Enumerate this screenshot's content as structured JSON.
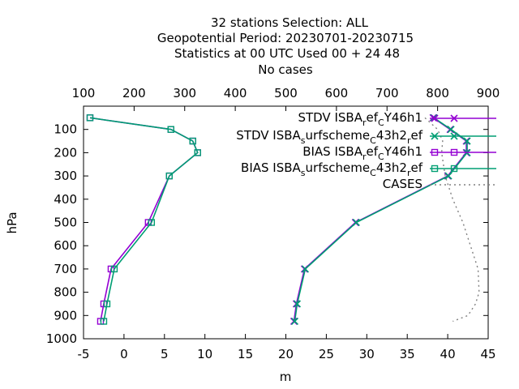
{
  "chart_data": {
    "type": "line",
    "title_lines": [
      "32 stations Selection: ALL",
      "Geopotential  Period: 20230701-20230715",
      "Statistics at 00 UTC  Used  00 + 24 48",
      "No cases"
    ],
    "xlabel": "m",
    "ylabel": "hPa",
    "xlim": [
      -5,
      45
    ],
    "x2lim": [
      100,
      900
    ],
    "ylim": [
      1000,
      0
    ],
    "x_ticks": [
      "-5",
      "0",
      "5",
      "10",
      "15",
      "20",
      "25",
      "30",
      "35",
      "40",
      "45"
    ],
    "x2_ticks": [
      "100",
      "200",
      "300",
      "400",
      "500",
      "600",
      "700",
      "800",
      "900"
    ],
    "y_ticks": [
      "100",
      "200",
      "300",
      "400",
      "500",
      "600",
      "700",
      "800",
      "900",
      "1000"
    ],
    "legend_position": "top-right",
    "series": [
      {
        "name": "STDV ISBA_ref_CY46h1",
        "color": "#9400d3",
        "marker": "x",
        "x": [
          38.2,
          40.3,
          42.3,
          42.3,
          40.0,
          28.6,
          22.3,
          21.3,
          21.0
        ],
        "y": [
          50,
          100,
          150,
          200,
          300,
          500,
          700,
          850,
          925
        ]
      },
      {
        "name": "STDV ISBA_surfscheme_C43h2_ref",
        "color": "#009e73",
        "marker": "x",
        "x": [
          38.3,
          40.4,
          42.4,
          42.4,
          40.1,
          28.7,
          22.4,
          21.4,
          21.1
        ],
        "y": [
          50,
          100,
          150,
          200,
          300,
          500,
          700,
          850,
          925
        ]
      },
      {
        "name": "BIAS ISBA_ref_CY46h1",
        "color": "#9400d3",
        "marker": "square",
        "x": [
          -4.2,
          5.8,
          8.5,
          9.1,
          5.6,
          3.0,
          -1.6,
          -2.5,
          -2.9
        ],
        "y": [
          50,
          100,
          150,
          200,
          300,
          500,
          700,
          850,
          925
        ]
      },
      {
        "name": "BIAS ISBA_surfscheme_C43h2_ref",
        "color": "#009e73",
        "marker": "square",
        "x": [
          -4.2,
          5.8,
          8.5,
          9.1,
          5.6,
          3.4,
          -1.2,
          -2.1,
          -2.5
        ],
        "y": [
          50,
          100,
          150,
          200,
          300,
          500,
          700,
          850,
          925
        ]
      },
      {
        "name": "CASES",
        "color": "#808080",
        "axis": "x2",
        "dashed": true,
        "x": [
          775,
          800,
          810,
          808,
          815,
          830,
          850,
          865,
          880,
          882,
          875,
          860,
          830
        ],
        "y": [
          50,
          100,
          150,
          200,
          300,
          400,
          500,
          600,
          700,
          800,
          850,
          900,
          925
        ]
      }
    ]
  },
  "legend_labels": [
    {
      "main": "STDV ISBA",
      "sub1": "r",
      "mid1": "ef",
      "sub2": "C",
      "tail": "Y46h1"
    },
    {
      "main": "STDV ISBA",
      "sub1": "s",
      "mid1": "urfscheme",
      "sub2": "C",
      "tail": "43h2",
      "sub3": "r",
      "tail2": "ef"
    },
    {
      "main": "BIAS ISBA",
      "sub1": "r",
      "mid1": "ef",
      "sub2": "C",
      "tail": "Y46h1"
    },
    {
      "main": "BIAS ISBA",
      "sub1": "s",
      "mid1": "urfscheme",
      "sub2": "C",
      "tail": "43h2",
      "sub3": "r",
      "tail2": "ef"
    },
    {
      "main": "CASES"
    }
  ]
}
